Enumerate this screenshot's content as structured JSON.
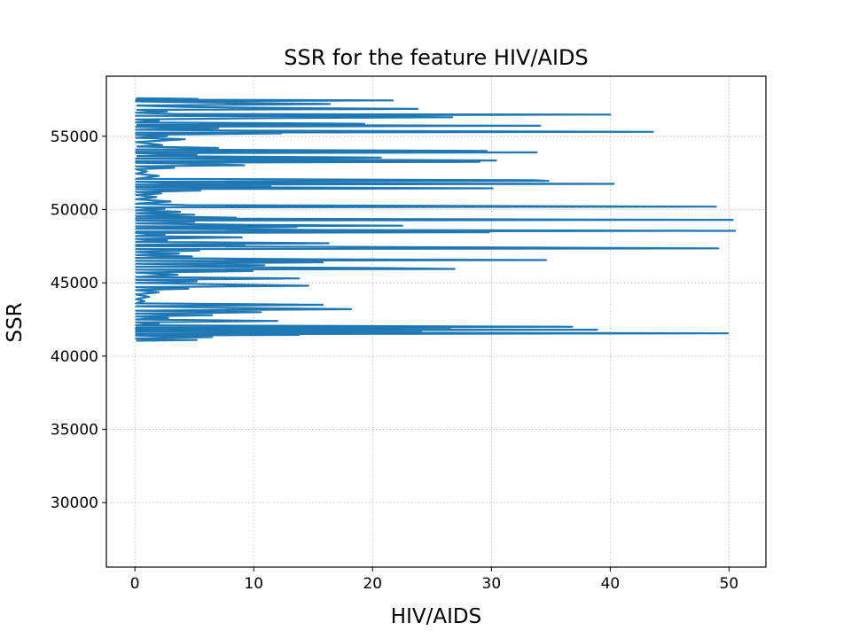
{
  "chart_data": {
    "type": "line",
    "title": "SSR for the feature HIV/AIDS",
    "xlabel": "HIV/AIDS",
    "ylabel": "SSR",
    "xlim": [
      -2.4,
      53.1
    ],
    "ylim": [
      25600,
      59100
    ],
    "xticks": [
      0,
      10,
      20,
      30,
      40,
      50
    ],
    "xtick_labels": [
      "0",
      "10",
      "20",
      "30",
      "40",
      "50"
    ],
    "yticks": [
      30000,
      35000,
      40000,
      45000,
      50000,
      55000
    ],
    "ytick_labels": [
      "30000",
      "35000",
      "40000",
      "45000",
      "50000",
      "55000"
    ],
    "grid": true,
    "line_color": "#1f77b4",
    "series": [
      {
        "name": "",
        "points": [
          [
            0.1,
            57600
          ],
          [
            5.3,
            57550
          ],
          [
            0.1,
            57500
          ],
          [
            21.7,
            57450
          ],
          [
            0.1,
            57380
          ],
          [
            6.5,
            57300
          ],
          [
            16.4,
            57200
          ],
          [
            0.2,
            57100
          ],
          [
            4.0,
            57000
          ],
          [
            14.5,
            56920
          ],
          [
            23.8,
            56870
          ],
          [
            0.2,
            56800
          ],
          [
            2.7,
            56700
          ],
          [
            0.1,
            56600
          ],
          [
            3.6,
            56520
          ],
          [
            40.0,
            56480
          ],
          [
            0.1,
            56400
          ],
          [
            17.1,
            56350
          ],
          [
            26.7,
            56300
          ],
          [
            12.7,
            56250
          ],
          [
            0.1,
            56150
          ],
          [
            2.0,
            56050
          ],
          [
            0.1,
            55950
          ],
          [
            19.3,
            55850
          ],
          [
            0.2,
            55780
          ],
          [
            34.1,
            55720
          ],
          [
            0.1,
            55650
          ],
          [
            7.0,
            55550
          ],
          [
            0.1,
            55450
          ],
          [
            10.3,
            55380
          ],
          [
            43.6,
            55300
          ],
          [
            0.1,
            55250
          ],
          [
            12.3,
            55200
          ],
          [
            0.1,
            55100
          ],
          [
            2.7,
            55000
          ],
          [
            0.1,
            54900
          ],
          [
            4.2,
            54800
          ],
          [
            0.1,
            54600
          ],
          [
            2.3,
            54400
          ],
          [
            0.2,
            54300
          ],
          [
            7.0,
            54200
          ],
          [
            0.1,
            54100
          ],
          [
            29.6,
            54000
          ],
          [
            0.1,
            53950
          ],
          [
            33.8,
            53900
          ],
          [
            0.1,
            53850
          ],
          [
            5.2,
            53750
          ],
          [
            0.2,
            53650
          ],
          [
            20.7,
            53550
          ],
          [
            0.1,
            53480
          ],
          [
            12.9,
            53420
          ],
          [
            30.4,
            53350
          ],
          [
            0.1,
            53300
          ],
          [
            29.0,
            53250
          ],
          [
            0.1,
            53200
          ],
          [
            6.0,
            53100
          ],
          [
            9.2,
            53020
          ],
          [
            0.1,
            52950
          ],
          [
            3.3,
            52850
          ],
          [
            0.1,
            52750
          ],
          [
            1.0,
            52600
          ],
          [
            0.1,
            52450
          ],
          [
            2.0,
            52300
          ],
          [
            0.1,
            52100
          ],
          [
            33.6,
            52000
          ],
          [
            34.8,
            51950
          ],
          [
            0.1,
            51900
          ],
          [
            3.8,
            51800
          ],
          [
            40.3,
            51750
          ],
          [
            0.1,
            51700
          ],
          [
            11.4,
            51600
          ],
          [
            0.1,
            51550
          ],
          [
            30.1,
            51450
          ],
          [
            0.1,
            51400
          ],
          [
            5.5,
            51300
          ],
          [
            0.1,
            51200
          ],
          [
            2.2,
            51100
          ],
          [
            0.1,
            51000
          ],
          [
            1.8,
            50850
          ],
          [
            0.1,
            50700
          ],
          [
            3.0,
            50550
          ],
          [
            0.1,
            50400
          ],
          [
            4.3,
            50300
          ],
          [
            48.9,
            50200
          ],
          [
            0.1,
            50150
          ],
          [
            2.5,
            50050
          ],
          [
            0.1,
            49950
          ],
          [
            3.8,
            49850
          ],
          [
            0.1,
            49750
          ],
          [
            5.0,
            49650
          ],
          [
            0.1,
            49550
          ],
          [
            8.5,
            49450
          ],
          [
            0.1,
            49400
          ],
          [
            20.7,
            49350
          ],
          [
            50.3,
            49300
          ],
          [
            0.1,
            49250
          ],
          [
            5.0,
            49150
          ],
          [
            0.1,
            49050
          ],
          [
            10.0,
            48950
          ],
          [
            22.5,
            48900
          ],
          [
            0.1,
            48850
          ],
          [
            13.6,
            48800
          ],
          [
            0.1,
            48700
          ],
          [
            16.0,
            48600
          ],
          [
            50.5,
            48550
          ],
          [
            0.1,
            48500
          ],
          [
            29.8,
            48450
          ],
          [
            0.1,
            48400
          ],
          [
            2.5,
            48300
          ],
          [
            0.1,
            48200
          ],
          [
            9.0,
            48100
          ],
          [
            0.1,
            48000
          ],
          [
            2.7,
            47900
          ],
          [
            0.1,
            47800
          ],
          [
            16.3,
            47700
          ],
          [
            0.1,
            47600
          ],
          [
            9.2,
            47550
          ],
          [
            0.1,
            47500
          ],
          [
            34.7,
            47400
          ],
          [
            49.1,
            47350
          ],
          [
            0.1,
            47300
          ],
          [
            5.4,
            47200
          ],
          [
            0.1,
            47100
          ],
          [
            3.7,
            47000
          ],
          [
            0.1,
            46900
          ],
          [
            4.8,
            46800
          ],
          [
            0.1,
            46700
          ],
          [
            16.0,
            46600
          ],
          [
            34.6,
            46550
          ],
          [
            0.1,
            46500
          ],
          [
            15.8,
            46400
          ],
          [
            0.1,
            46300
          ],
          [
            10.9,
            46200
          ],
          [
            0.1,
            46100
          ],
          [
            21.3,
            46000
          ],
          [
            26.9,
            45950
          ],
          [
            0.1,
            45900
          ],
          [
            9.9,
            45800
          ],
          [
            0.1,
            45700
          ],
          [
            3.6,
            45550
          ],
          [
            0.1,
            45400
          ],
          [
            13.8,
            45300
          ],
          [
            0.1,
            45200
          ],
          [
            5.2,
            45100
          ],
          [
            0.1,
            45000
          ],
          [
            6.8,
            44900
          ],
          [
            14.6,
            44800
          ],
          [
            0.1,
            44700
          ],
          [
            4.5,
            44600
          ],
          [
            0.1,
            44500
          ],
          [
            2.0,
            44350
          ],
          [
            0.1,
            44200
          ],
          [
            1.2,
            44050
          ],
          [
            0.1,
            43900
          ],
          [
            0.8,
            43750
          ],
          [
            0.1,
            43600
          ],
          [
            15.8,
            43500
          ],
          [
            0.1,
            43400
          ],
          [
            7.2,
            43300
          ],
          [
            18.2,
            43200
          ],
          [
            0.1,
            43100
          ],
          [
            10.6,
            43000
          ],
          [
            0.1,
            42900
          ],
          [
            6.5,
            42800
          ],
          [
            0.1,
            42700
          ],
          [
            2.8,
            42600
          ],
          [
            0.1,
            42500
          ],
          [
            12.0,
            42400
          ],
          [
            0.1,
            42300
          ],
          [
            2.0,
            42200
          ],
          [
            0.1,
            42100
          ],
          [
            36.8,
            42000
          ],
          [
            0.1,
            41950
          ],
          [
            26.5,
            41900
          ],
          [
            0.1,
            41850
          ],
          [
            38.9,
            41800
          ],
          [
            0.1,
            41750
          ],
          [
            24.1,
            41700
          ],
          [
            0.1,
            41650
          ],
          [
            18.0,
            41600
          ],
          [
            49.9,
            41550
          ],
          [
            0.1,
            41500
          ],
          [
            13.8,
            41450
          ],
          [
            0.1,
            41400
          ],
          [
            6.5,
            41300
          ],
          [
            0.1,
            41200
          ],
          [
            5.2,
            41100
          ],
          [
            0.1,
            41050
          ]
        ]
      }
    ]
  }
}
